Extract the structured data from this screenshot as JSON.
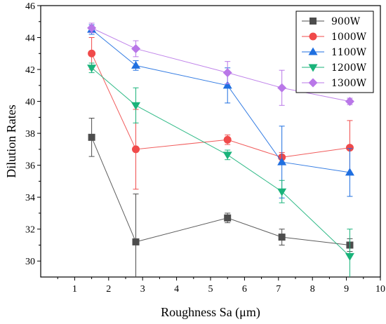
{
  "chart_data": {
    "type": "line",
    "xlabel": "Roughness Sa (μm)",
    "ylabel": "Dilution Rates",
    "xlim": [
      0,
      10
    ],
    "ylim": [
      29,
      46
    ],
    "xticks": [
      1,
      2,
      3,
      4,
      5,
      6,
      7,
      8,
      9,
      10
    ],
    "yticks": [
      30,
      32,
      34,
      36,
      38,
      40,
      42,
      44,
      46
    ],
    "grid": false,
    "legend_position": "top-right",
    "x": [
      1.5,
      2.8,
      5.5,
      7.1,
      9.1
    ],
    "series": [
      {
        "name": "900W",
        "marker": "square",
        "color": "#4d4d4d",
        "values": [
          37.75,
          31.2,
          32.7,
          31.5,
          31.0
        ],
        "errors": [
          1.2,
          3.0,
          0.3,
          0.5,
          0.4
        ]
      },
      {
        "name": "1000W",
        "marker": "circle",
        "color": "#f04a4a",
        "values": [
          43.0,
          37.0,
          37.6,
          36.5,
          37.1
        ],
        "errors": [
          1.0,
          2.5,
          0.3,
          0.3,
          1.7
        ]
      },
      {
        "name": "1100W",
        "marker": "triangle-up",
        "color": "#1f6fe0",
        "values": [
          44.5,
          42.25,
          41.0,
          36.2,
          35.55
        ],
        "errors": [
          0.3,
          0.3,
          1.1,
          2.25,
          1.5
        ]
      },
      {
        "name": "1200W",
        "marker": "triangle-down",
        "color": "#19b37a",
        "values": [
          42.1,
          39.75,
          36.65,
          34.35,
          30.3
        ],
        "errors": [
          0.3,
          1.1,
          0.3,
          0.7,
          1.7
        ]
      },
      {
        "name": "1300W",
        "marker": "diamond",
        "color": "#b977e8",
        "values": [
          44.6,
          43.3,
          41.8,
          40.85,
          40.0
        ],
        "errors": [
          0.3,
          0.5,
          0.7,
          1.1,
          0.2
        ]
      }
    ]
  }
}
